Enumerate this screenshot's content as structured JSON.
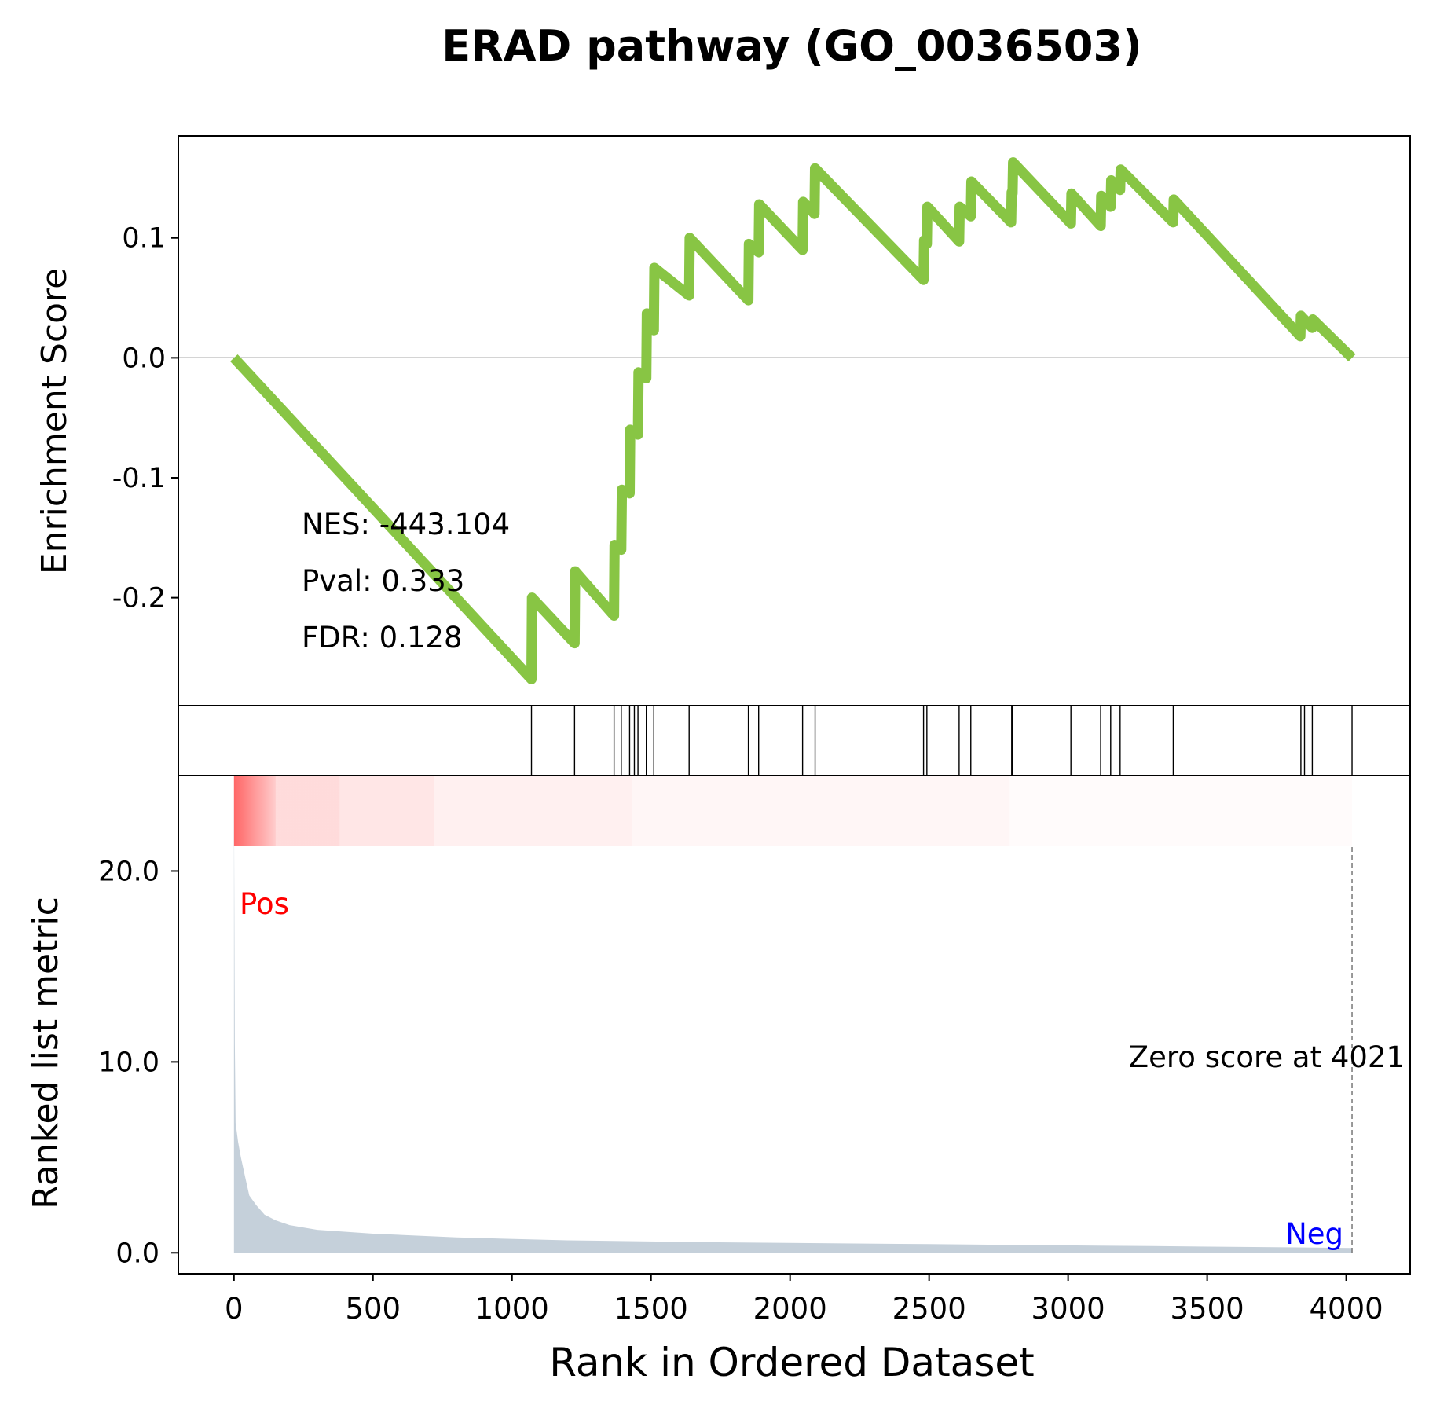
{
  "chart_data": {
    "type": "line",
    "title": "ERAD pathway (GO_0036503)",
    "es_panel": {
      "ylabel": "Enrichment Score",
      "yticks": [
        0.1,
        0.0,
        -0.1,
        -0.2
      ],
      "ytick_labels": [
        "0.1",
        "0.0",
        "-0.1",
        "-0.2"
      ],
      "ylim": [
        -0.29,
        0.185
      ],
      "line_color": "#88c544",
      "zero_line": true,
      "stats": [
        "NES: -443.104",
        "Pval: 0.333",
        "FDR: 0.128"
      ],
      "es_curve": [
        [
          0,
          0.0
        ],
        [
          1070,
          -0.268
        ],
        [
          1072,
          -0.2
        ],
        [
          1225,
          -0.238
        ],
        [
          1227,
          -0.178
        ],
        [
          1367,
          -0.215
        ],
        [
          1369,
          -0.156
        ],
        [
          1393,
          -0.16
        ],
        [
          1395,
          -0.11
        ],
        [
          1423,
          -0.113
        ],
        [
          1425,
          -0.06
        ],
        [
          1453,
          -0.064
        ],
        [
          1455,
          -0.012
        ],
        [
          1483,
          -0.017
        ],
        [
          1485,
          0.037
        ],
        [
          1510,
          0.023
        ],
        [
          1512,
          0.075
        ],
        [
          1637,
          0.052
        ],
        [
          1639,
          0.1
        ],
        [
          1850,
          0.048
        ],
        [
          1852,
          0.095
        ],
        [
          1887,
          0.088
        ],
        [
          1889,
          0.128
        ],
        [
          2045,
          0.09
        ],
        [
          2047,
          0.13
        ],
        [
          2088,
          0.12
        ],
        [
          2090,
          0.158
        ],
        [
          2480,
          0.065
        ],
        [
          2482,
          0.098
        ],
        [
          2492,
          0.095
        ],
        [
          2494,
          0.126
        ],
        [
          2608,
          0.097
        ],
        [
          2610,
          0.126
        ],
        [
          2650,
          0.118
        ],
        [
          2652,
          0.147
        ],
        [
          2795,
          0.113
        ],
        [
          2797,
          0.138
        ],
        [
          2800,
          0.137
        ],
        [
          2802,
          0.163
        ],
        [
          3010,
          0.112
        ],
        [
          3012,
          0.137
        ],
        [
          3117,
          0.11
        ],
        [
          3119,
          0.135
        ],
        [
          3153,
          0.126
        ],
        [
          3155,
          0.148
        ],
        [
          3187,
          0.14
        ],
        [
          3189,
          0.157
        ],
        [
          3378,
          0.113
        ],
        [
          3380,
          0.132
        ],
        [
          3835,
          0.018
        ],
        [
          3837,
          0.035
        ],
        [
          3878,
          0.025
        ],
        [
          3880,
          0.032
        ],
        [
          4021,
          0.0
        ]
      ]
    },
    "hits_panel": {
      "hit_ranks": [
        1070,
        1225,
        1367,
        1393,
        1423,
        1440,
        1453,
        1483,
        1510,
        1637,
        1850,
        1887,
        2045,
        2090,
        2480,
        2492,
        2608,
        2650,
        2797,
        2800,
        3010,
        3117,
        3153,
        3187,
        3378,
        3837,
        3850,
        3878,
        4021
      ]
    },
    "heatmap_band": {
      "color": "#ff0000",
      "segments": [
        {
          "from": 0,
          "to": 150,
          "opacity_start": 0.6,
          "opacity_end": 0.2
        },
        {
          "from": 150,
          "to": 380,
          "opacity_start": 0.14,
          "opacity_end": 0.14
        },
        {
          "from": 380,
          "to": 720,
          "opacity_start": 0.1,
          "opacity_end": 0.1
        },
        {
          "from": 720,
          "to": 1430,
          "opacity_start": 0.06,
          "opacity_end": 0.06
        },
        {
          "from": 1430,
          "to": 2790,
          "opacity_start": 0.035,
          "opacity_end": 0.035
        },
        {
          "from": 2790,
          "to": 4021,
          "opacity_start": 0.015,
          "opacity_end": 0.015
        }
      ]
    },
    "metric_panel": {
      "ylabel": "Ranked list metric",
      "xlabel": "Rank in Ordered Dataset",
      "yticks": [
        0.0,
        10.0,
        20.0
      ],
      "ytick_labels": [
        "0.0",
        "10.0",
        "20.0"
      ],
      "ylim": [
        -1.1,
        25.0
      ],
      "xticks": [
        0,
        500,
        1000,
        1500,
        2000,
        2500,
        3000,
        3500,
        4000
      ],
      "xtick_labels": [
        "0",
        "500",
        "1000",
        "1500",
        "2000",
        "2500",
        "3000",
        "3500",
        "4000"
      ],
      "xlim": [
        -200,
        4230
      ],
      "fill_color": "#c5d0da",
      "metric_curve": [
        [
          0,
          24.2
        ],
        [
          3,
          11.0
        ],
        [
          6,
          6.8
        ],
        [
          15,
          5.8
        ],
        [
          25,
          5.0
        ],
        [
          40,
          4.0
        ],
        [
          55,
          3.0
        ],
        [
          80,
          2.5
        ],
        [
          110,
          2.0
        ],
        [
          150,
          1.7
        ],
        [
          200,
          1.45
        ],
        [
          300,
          1.2
        ],
        [
          500,
          1.0
        ],
        [
          800,
          0.8
        ],
        [
          1200,
          0.65
        ],
        [
          1700,
          0.55
        ],
        [
          2500,
          0.45
        ],
        [
          3300,
          0.35
        ],
        [
          4021,
          0.25
        ]
      ],
      "pos_label": "Pos",
      "neg_label": "Neg",
      "pos_color": "#ff0000",
      "neg_color": "#0000ff",
      "zero_score_text": "Zero score at 4021",
      "zero_score_rank": 4021
    }
  }
}
